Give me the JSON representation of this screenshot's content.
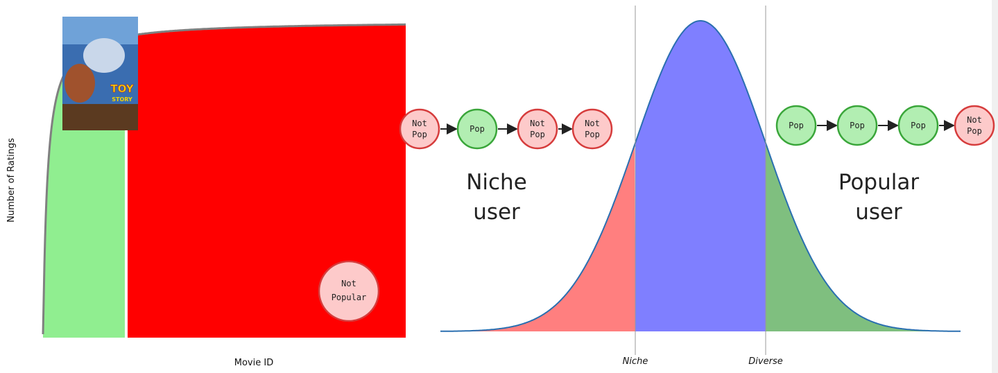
{
  "left_plot": {
    "y_label": "Number of Ratings",
    "x_label": "Movie ID",
    "poster_title": [
      "TOY",
      "STORY"
    ],
    "badge": [
      "Not",
      "Popular"
    ]
  },
  "right_plot": {
    "sequences": [
      [
        [
          "Not",
          "Pop"
        ],
        [
          "Pop"
        ],
        [
          "Not",
          "Pop"
        ],
        [
          "Not",
          "Pop"
        ]
      ],
      [
        [
          "Pop"
        ],
        [
          "Pop"
        ],
        [
          "Pop"
        ],
        [
          "Not",
          "Pop"
        ]
      ]
    ],
    "niche_label": [
      "Niche",
      "user"
    ],
    "popular_label": [
      "Popular",
      "user"
    ],
    "x_ticks": [
      "Niche",
      "Diverse"
    ]
  }
}
